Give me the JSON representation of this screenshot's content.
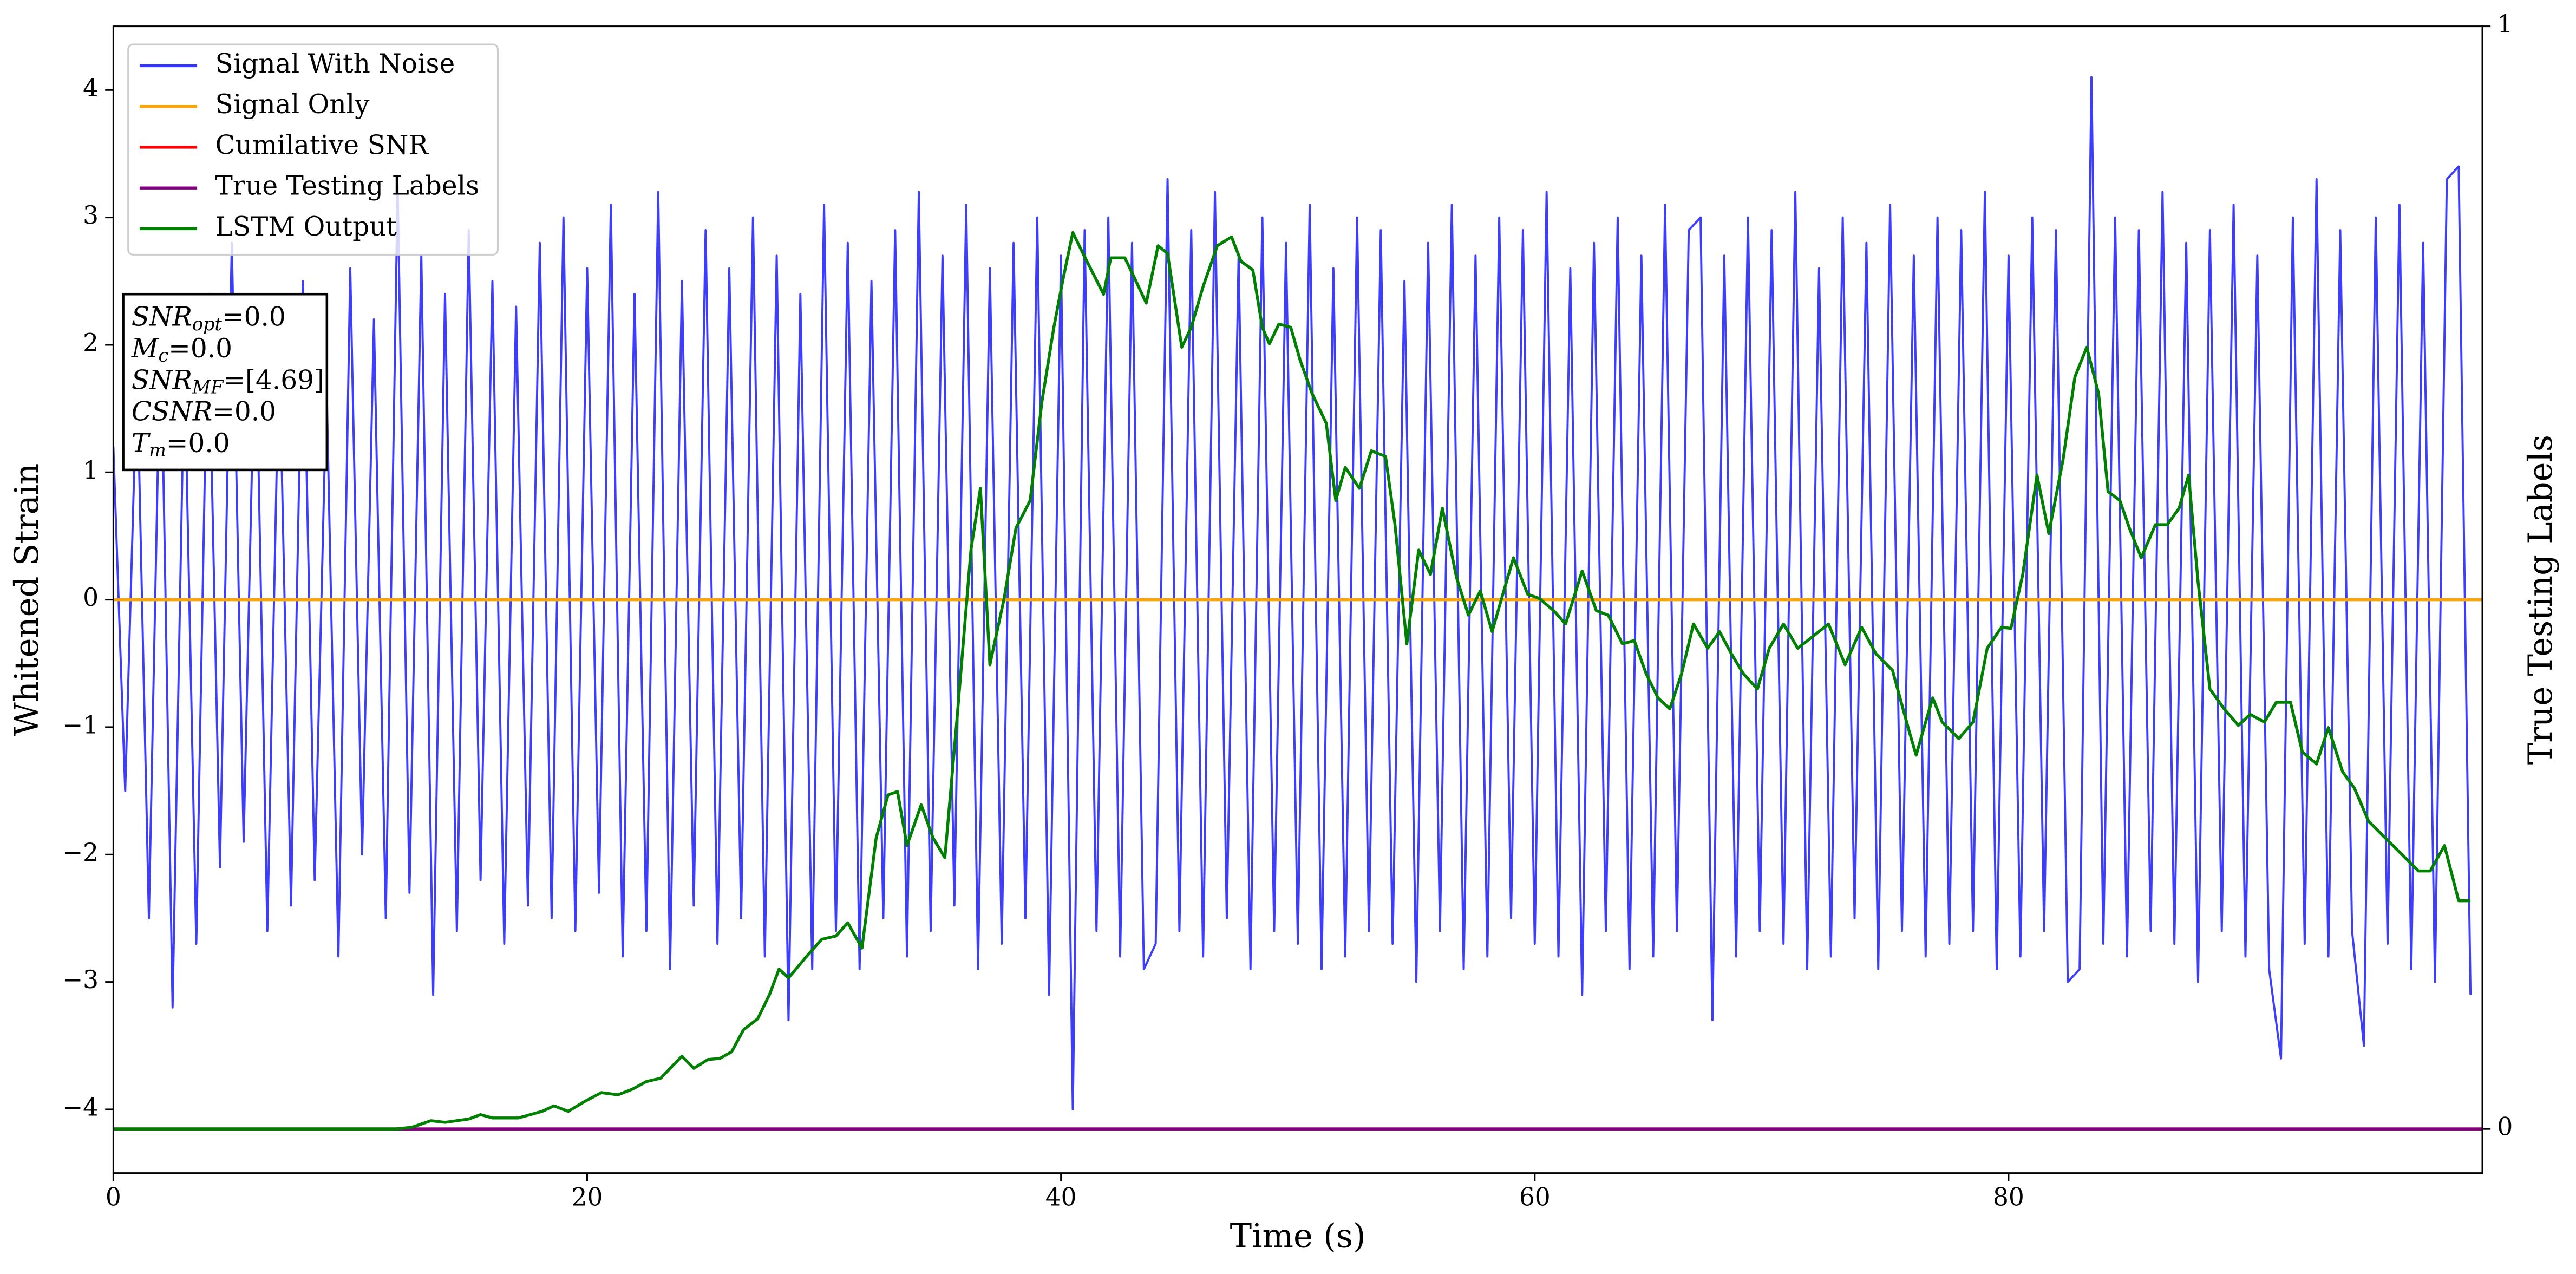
{
  "chart_data": {
    "type": "line",
    "xlabel": "Time (s)",
    "ylabel": "Whitened Strain",
    "y2label": "True Testing Labels",
    "xlim": [
      0,
      100
    ],
    "xticks": [
      0,
      20,
      40,
      60,
      80
    ],
    "ylim": [
      -4.5,
      4.5
    ],
    "yticks": [
      {
        "value": -4,
        "label": "−4"
      },
      {
        "value": -3,
        "label": "−3"
      },
      {
        "value": -2,
        "label": "−2"
      },
      {
        "value": -1,
        "label": "−1"
      },
      0,
      1,
      2,
      3,
      4
    ],
    "y2lim": [
      -0.04,
      1.0
    ],
    "y2ticks": [
      0,
      1
    ],
    "legend": "upper left",
    "annotation": [
      {
        "main": "SNR",
        "sub": "opt",
        "rest": "=0.0"
      },
      {
        "main": "M",
        "sub": "c",
        "rest": "=0.0"
      },
      {
        "main": "SNR",
        "sub": "MF",
        "rest": "=[4.69]"
      },
      {
        "main": "CSNR",
        "sub": null,
        "rest": "=0.0"
      },
      {
        "main": "T",
        "sub": "m",
        "rest": "=0.0"
      }
    ],
    "series": [
      {
        "name": "Signal With Noise",
        "color": "#3333ff",
        "x": [
          0,
          0.5,
          1,
          1.5,
          2,
          2.5,
          3,
          3.5,
          4,
          4.5,
          5,
          5.5,
          6,
          6.5,
          7,
          7.5,
          8,
          8.5,
          9,
          9.5,
          10,
          10.5,
          11,
          11.5,
          12,
          12.5,
          13,
          13.5,
          14,
          14.5,
          15,
          15.5,
          16,
          16.5,
          17,
          17.5,
          18,
          18.5,
          19,
          19.5,
          20,
          20.5,
          21,
          21.5,
          22,
          22.5,
          23,
          23.5,
          24,
          24.5,
          25,
          25.5,
          26,
          26.5,
          27,
          27.5,
          28,
          28.5,
          29,
          29.5,
          30,
          30.5,
          31,
          31.5,
          32,
          32.5,
          33,
          33.5,
          34,
          34.5,
          35,
          35.5,
          36,
          36.5,
          37,
          37.5,
          38,
          38.5,
          39,
          39.5,
          40,
          40.5,
          41,
          41.5,
          42,
          42.5,
          43,
          43.5,
          44,
          44.5,
          45,
          45.5,
          46,
          46.5,
          47,
          47.5,
          48,
          48.5,
          49,
          49.5,
          50,
          50.5,
          51,
          51.5,
          52,
          52.5,
          53,
          53.5,
          54,
          54.5,
          55,
          55.5,
          56,
          56.5,
          57,
          57.5,
          58,
          58.5,
          59,
          59.5,
          60,
          60.5,
          61,
          61.5,
          62,
          62.5,
          63,
          63.5,
          64,
          64.5,
          65,
          65.5,
          66,
          66.5,
          67,
          67.5,
          68,
          68.5,
          69,
          69.5,
          70,
          70.5,
          71,
          71.5,
          72,
          72.5,
          73,
          73.5,
          74,
          74.5,
          75,
          75.5,
          76,
          76.5,
          77,
          77.5,
          78,
          78.5,
          79,
          79.5,
          80,
          80.5,
          81,
          81.5,
          82,
          82.5,
          83,
          83.5,
          84,
          84.5,
          85,
          85.5,
          86,
          86.5,
          87,
          87.5,
          88,
          88.5,
          89,
          89.5,
          90,
          90.5,
          91,
          91.5,
          92,
          92.5,
          93,
          93.5,
          94,
          94.5,
          95,
          95.5,
          96,
          96.5,
          97,
          97.5,
          98,
          98.5,
          99,
          99.5
        ],
        "values": [
          1.2,
          -1.5,
          1.8,
          -2.5,
          2.2,
          -3.2,
          1.9,
          -2.7,
          2.4,
          -2.1,
          2.8,
          -1.9,
          2.3,
          -2.6,
          2.0,
          -2.4,
          2.5,
          -2.2,
          1.7,
          -2.8,
          2.6,
          -2.0,
          2.2,
          -2.5,
          3.25,
          -2.3,
          2.7,
          -3.1,
          2.4,
          -2.6,
          2.9,
          -2.2,
          2.5,
          -2.7,
          2.3,
          -2.4,
          2.8,
          -2.5,
          3.0,
          -2.6,
          2.6,
          -2.3,
          3.1,
          -2.8,
          2.4,
          -2.6,
          3.2,
          -2.9,
          2.5,
          -2.4,
          2.9,
          -2.7,
          2.6,
          -2.5,
          3.0,
          -2.8,
          2.7,
          -3.3,
          2.4,
          -2.9,
          3.1,
          -2.6,
          2.8,
          -2.9,
          2.5,
          -2.5,
          2.9,
          -2.8,
          3.2,
          -2.6,
          2.7,
          -2.4,
          3.1,
          -2.9,
          2.6,
          -2.7,
          2.8,
          -2.5,
          3.0,
          -3.1,
          2.7,
          -4.0,
          2.9,
          -2.6,
          3.0,
          -2.8,
          2.8,
          -2.9,
          -2.7,
          3.3,
          -2.6,
          2.9,
          -2.8,
          3.2,
          -2.5,
          2.7,
          -2.9,
          3.0,
          -2.6,
          2.8,
          -2.7,
          3.1,
          -2.9,
          2.6,
          -2.8,
          3.0,
          -2.6,
          2.9,
          -2.7,
          2.5,
          -3.0,
          2.8,
          -2.6,
          3.1,
          -2.9,
          2.7,
          -2.8,
          3.0,
          -2.5,
          2.9,
          -2.7,
          3.2,
          -2.8,
          2.6,
          -3.1,
          2.8,
          -2.6,
          3.0,
          -2.9,
          2.7,
          -2.8,
          3.1,
          -2.6,
          2.9,
          3.0,
          -3.3,
          2.7,
          -2.8,
          3.0,
          -2.6,
          2.9,
          -2.7,
          3.2,
          -2.9,
          2.6,
          -2.8,
          3.0,
          -2.5,
          2.8,
          -2.9,
          3.1,
          -2.6,
          2.7,
          -2.8,
          3.0,
          -2.7,
          2.9,
          -2.6,
          3.2,
          -2.9,
          2.7,
          -2.8,
          3.0,
          -2.6,
          2.9,
          -3.0,
          -2.9,
          4.1,
          -2.7,
          3.0,
          -2.8,
          2.9,
          -2.6,
          3.2,
          -2.7,
          2.8,
          -3.0,
          2.9,
          -2.6,
          3.1,
          -2.8,
          2.7,
          -2.9,
          -3.6,
          3.0,
          -2.7,
          3.3,
          -2.8,
          2.9,
          -2.6,
          -3.5,
          3.0,
          -2.7,
          3.1,
          -2.9,
          2.8,
          -3.0,
          3.3,
          3.4,
          -3.1
        ]
      },
      {
        "name": "Signal Only",
        "color": "#ffa500",
        "x": [
          0,
          100
        ],
        "values": [
          0,
          0
        ]
      },
      {
        "name": "Cumilative SNR",
        "color": "#ff0000",
        "axis": "y2",
        "x": [
          0,
          100
        ],
        "values": [
          0,
          0
        ]
      },
      {
        "name": "True Testing Labels",
        "color": "#800080",
        "axis": "y2",
        "x": [
          0,
          100
        ],
        "values": [
          0,
          0
        ]
      },
      {
        "name": "LSTM Output",
        "color": "#008000",
        "axis": "y2",
        "x": [
          0,
          11.9,
          12.6,
          13.4,
          14.0,
          15.0,
          15.5,
          16.0,
          17.1,
          18.1,
          18.6,
          19.2,
          19.9,
          20.6,
          21.3,
          21.9,
          22.5,
          23.1,
          24.0,
          24.5,
          25.1,
          25.6,
          26.1,
          26.6,
          27.2,
          27.7,
          28.1,
          28.5,
          29.2,
          29.9,
          30.5,
          31.0,
          31.6,
          32.2,
          32.7,
          33.1,
          33.5,
          34.1,
          34.6,
          35.1,
          35.6,
          36.2,
          36.6,
          37.0,
          37.6,
          38.1,
          38.7,
          39.2,
          39.7,
          40.1,
          40.5,
          41.0,
          41.8,
          42.1,
          42.7,
          43.1,
          43.6,
          44.1,
          44.5,
          45.1,
          45.5,
          46.0,
          46.6,
          47.2,
          47.6,
          48.1,
          48.5,
          48.8,
          49.2,
          49.7,
          50.1,
          50.6,
          51.2,
          51.6,
          52.0,
          52.6,
          53.1,
          53.7,
          54.1,
          54.6,
          55.1,
          55.6,
          56.1,
          56.7,
          57.2,
          57.7,
          58.2,
          58.6,
          59.1,
          59.7,
          60.2,
          60.8,
          61.3,
          62.0,
          62.6,
          63.1,
          63.7,
          64.2,
          64.7,
          65.2,
          65.7,
          66.2,
          66.7,
          67.3,
          67.8,
          68.3,
          68.8,
          69.4,
          69.9,
          70.5,
          71.1,
          71.7,
          72.4,
          73.1,
          73.8,
          74.4,
          75.1,
          75.8,
          76.1,
          76.5,
          76.8,
          77.2,
          77.9,
          78.5,
          79.1,
          79.7,
          80.1,
          80.6,
          81.2,
          81.7,
          82.3,
          82.8,
          83.3,
          83.8,
          84.2,
          84.7,
          85.1,
          85.6,
          86.2,
          86.7,
          87.2,
          87.6,
          88.0,
          88.5,
          89.1,
          89.7,
          90.2,
          90.8,
          91.3,
          91.9,
          92.4,
          93.0,
          93.5,
          94.1,
          94.6,
          95.2,
          95.9,
          96.6,
          97.3,
          97.8,
          98.4,
          99.0,
          99.5
        ],
        "values": [
          0,
          0,
          0.0015,
          0.0075,
          0.006,
          0.009,
          0.013,
          0.01,
          0.01,
          0.016,
          0.021,
          0.016,
          0.025,
          0.033,
          0.031,
          0.036,
          0.043,
          0.046,
          0.066,
          0.055,
          0.063,
          0.064,
          0.07,
          0.09,
          0.1,
          0.122,
          0.145,
          0.137,
          0.155,
          0.172,
          0.175,
          0.187,
          0.164,
          0.264,
          0.303,
          0.306,
          0.257,
          0.294,
          0.264,
          0.246,
          0.369,
          0.525,
          0.581,
          0.421,
          0.481,
          0.545,
          0.57,
          0.66,
          0.727,
          0.772,
          0.813,
          0.791,
          0.757,
          0.79,
          0.79,
          0.772,
          0.749,
          0.801,
          0.794,
          0.709,
          0.727,
          0.764,
          0.801,
          0.809,
          0.787,
          0.779,
          0.727,
          0.712,
          0.73,
          0.727,
          0.697,
          0.667,
          0.64,
          0.57,
          0.6,
          0.581,
          0.615,
          0.61,
          0.548,
          0.44,
          0.525,
          0.503,
          0.563,
          0.5,
          0.466,
          0.488,
          0.451,
          0.481,
          0.518,
          0.485,
          0.481,
          0.47,
          0.458,
          0.506,
          0.47,
          0.466,
          0.44,
          0.443,
          0.413,
          0.391,
          0.381,
          0.413,
          0.458,
          0.436,
          0.451,
          0.431,
          0.413,
          0.399,
          0.436,
          0.458,
          0.436,
          0.446,
          0.458,
          0.421,
          0.455,
          0.431,
          0.416,
          0.361,
          0.339,
          0.369,
          0.391,
          0.369,
          0.354,
          0.369,
          0.436,
          0.455,
          0.454,
          0.503,
          0.593,
          0.54,
          0.607,
          0.682,
          0.709,
          0.667,
          0.578,
          0.57,
          0.545,
          0.518,
          0.548,
          0.548,
          0.563,
          0.593,
          0.496,
          0.399,
          0.381,
          0.366,
          0.376,
          0.369,
          0.387,
          0.387,
          0.342,
          0.331,
          0.364,
          0.324,
          0.309,
          0.279,
          0.264,
          0.249,
          0.234,
          0.234,
          0.257,
          0.207,
          0.207
        ]
      }
    ]
  }
}
